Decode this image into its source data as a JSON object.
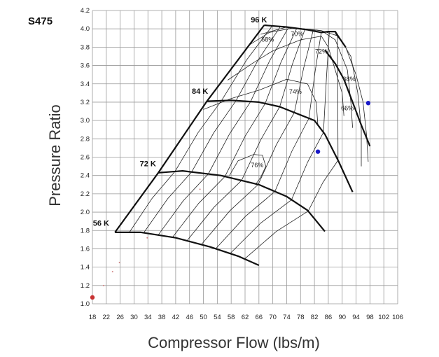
{
  "chart_data": {
    "type": "scatter",
    "title": "S475",
    "xlabel": "Compressor Flow (lbs/m)",
    "ylabel": "Pressure Ratio",
    "xlim": [
      18,
      106
    ],
    "ylim": [
      1.0,
      4.2
    ],
    "x_ticks": [
      18,
      22,
      26,
      30,
      34,
      38,
      42,
      46,
      50,
      54,
      58,
      62,
      66,
      70,
      74,
      78,
      82,
      86,
      90,
      94,
      98,
      102,
      106
    ],
    "y_ticks": [
      1.0,
      1.2,
      1.4,
      1.6,
      1.8,
      2.0,
      2.2,
      2.4,
      2.6,
      2.8,
      3.0,
      3.2,
      3.4,
      3.6,
      3.8,
      4.0,
      4.2
    ],
    "grid": true,
    "surge_line": [
      [
        24.5,
        1.78
      ],
      [
        37,
        2.43
      ],
      [
        51,
        3.21
      ],
      [
        67.5,
        4.04
      ]
    ],
    "choke_line": [
      [
        85,
        3.77
      ],
      [
        88,
        3.62
      ],
      [
        90.5,
        3.45
      ],
      [
        93,
        3.2
      ],
      [
        95.5,
        2.95
      ],
      [
        98,
        2.72
      ]
    ],
    "speed_lines": [
      {
        "name": "56 K",
        "points": [
          [
            24.5,
            1.78
          ],
          [
            32,
            1.78
          ],
          [
            42,
            1.72
          ],
          [
            52,
            1.62
          ],
          [
            60,
            1.52
          ],
          [
            66,
            1.42
          ]
        ]
      },
      {
        "name": "72 K",
        "points": [
          [
            37,
            2.43
          ],
          [
            44,
            2.45
          ],
          [
            55,
            2.4
          ],
          [
            66,
            2.3
          ],
          [
            74,
            2.17
          ],
          [
            80,
            2.02
          ],
          [
            85,
            1.79
          ]
        ]
      },
      {
        "name": "84 K",
        "points": [
          [
            51,
            3.21
          ],
          [
            58,
            3.22
          ],
          [
            66,
            3.2
          ],
          [
            72,
            3.15
          ],
          [
            78,
            3.06
          ],
          [
            82,
            3.0
          ],
          [
            85,
            2.85
          ],
          [
            89,
            2.55
          ],
          [
            93,
            2.22
          ]
        ]
      },
      {
        "name": "96 K",
        "points": [
          [
            67.5,
            4.04
          ],
          [
            74,
            4.02
          ],
          [
            80,
            3.99
          ],
          [
            84,
            3.96
          ],
          [
            86,
            3.97
          ],
          [
            88,
            3.97
          ],
          [
            89,
            3.91
          ],
          [
            91,
            3.8
          ]
        ]
      }
    ],
    "efficiency_islands": [
      {
        "name": "68%",
        "label_at": [
          68.5,
          3.86
        ]
      },
      {
        "name": "70%",
        "label_at": [
          77,
          3.92
        ]
      },
      {
        "name": "72%",
        "label_at": [
          84,
          3.73
        ]
      },
      {
        "name": "74%",
        "label_at": [
          76.5,
          3.29
        ]
      },
      {
        "name": "76%",
        "label_at": [
          65.5,
          2.49
        ]
      },
      {
        "name": "68%",
        "label_at": [
          92,
          3.43
        ]
      },
      {
        "name": "66%",
        "label_at": [
          91.5,
          3.11
        ]
      }
    ],
    "operating_points": [
      {
        "x": 83,
        "y": 2.66,
        "color": "#1a1ac8"
      },
      {
        "x": 97.5,
        "y": 3.19,
        "color": "#1a1ac8"
      },
      {
        "x": 18,
        "y": 1.07,
        "color": "#c83232"
      }
    ]
  },
  "colors": {
    "grid": "#999999",
    "lines": "#111111",
    "point_blue": "#1a1ac8",
    "point_red": "#c83232"
  }
}
